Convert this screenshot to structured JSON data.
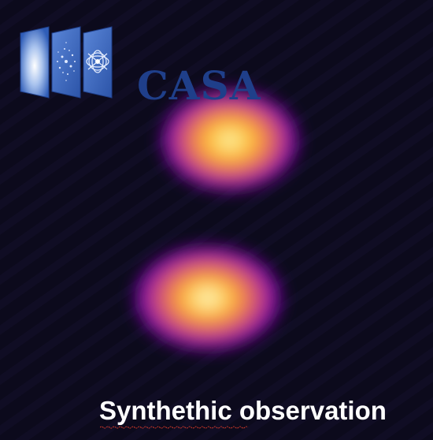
{
  "image": {
    "kind": "synthetic radio interferometry observation",
    "colormap": "inferno",
    "background_color": "#0c0a1c"
  },
  "logo": {
    "text": "CASA",
    "text_color": "#1f3f8a",
    "panels": [
      "gaussian-panel",
      "uv-sampling-panel",
      "dirty-beam-panel"
    ],
    "panel_color": "#3f6fc8"
  },
  "caption": {
    "text": "Synthethic observation",
    "color": "#ffffff",
    "spellcheck_underline_color": "#d23a2a"
  },
  "sources": {
    "count": 2,
    "colors": [
      "#fdf6c8",
      "#fca636",
      "#e16462",
      "#b12a90",
      "#6a00a8",
      "#2a0a55"
    ]
  }
}
